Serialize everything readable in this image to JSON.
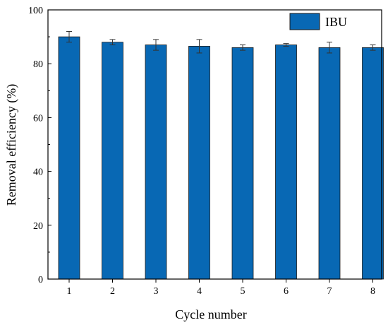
{
  "chart_data": {
    "type": "bar",
    "categories": [
      "1",
      "2",
      "3",
      "4",
      "5",
      "6",
      "7",
      "8"
    ],
    "series": [
      {
        "name": "IBU",
        "values": [
          90,
          88,
          87,
          86.5,
          86,
          87,
          86,
          86
        ],
        "errors": [
          2,
          1,
          2,
          2.5,
          1,
          0.5,
          2,
          1
        ],
        "color": "#0868b4"
      }
    ],
    "xlabel": "Cycle number",
    "ylabel": "Removal efficiency (%)",
    "ylim": [
      0,
      100
    ],
    "yticks": [
      0,
      20,
      40,
      60,
      80,
      100
    ],
    "grid": false,
    "legend": "top-right"
  }
}
